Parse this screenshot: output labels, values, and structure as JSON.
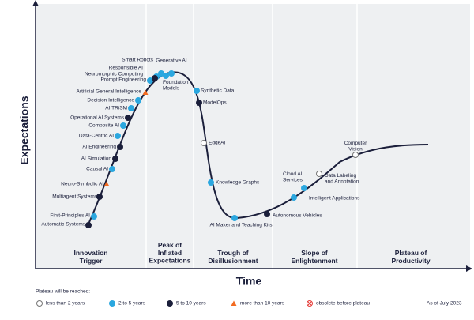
{
  "axes": {
    "y_label": "Expectations",
    "x_label": "Time"
  },
  "phases": [
    [
      "Innovation",
      "Trigger"
    ],
    [
      "Peak of",
      "Inflated",
      "Expectations"
    ],
    [
      "Trough of",
      "Disillusionment"
    ],
    [
      "Slope of",
      "Enlightenment"
    ],
    [
      "Plateau of",
      "Productivity"
    ]
  ],
  "legend": {
    "title": "Plateau will be reached:",
    "as_of": "As of July 2023",
    "groups": [
      {
        "label": "less than 2 years",
        "items": [
          "EdgeAI",
          [
            "Data Labeling",
            "and Annotation"
          ],
          [
            "Computer",
            "Vision"
          ]
        ]
      },
      {
        "label": "2 to 5 years",
        "items": [
          "First-Principles AI",
          "Causal AI",
          "Data-Centric AI",
          ".Composite AI",
          "AI TRiSM",
          "Decision Intelligence",
          "Prompt Engineering",
          "Responsible AI",
          "Smart Robots",
          "Generative AI",
          [
            "Foundation",
            "Models"
          ],
          "Synthetic Data",
          "Knowledge Graphs",
          "AI Maker and Teaching Kits",
          [
            "Cloud AI",
            "Services"
          ],
          "Intelligent Applications"
        ]
      },
      {
        "label": "5 to 10 years",
        "items": [
          "Automatic Systems",
          "Multiagent Systems",
          "AI Simulation",
          "AI Engineering",
          "Operational AI Systems",
          "Neuromorphic Computing",
          "ModelOps",
          "Autonomous Vehicles"
        ]
      },
      {
        "label": "more than 10 years",
        "items": [
          "Neuro-Symbolic AI",
          "Artificial General Intelligence"
        ]
      },
      {
        "label": "obsolete before plateau",
        "items": []
      }
    ]
  }
}
